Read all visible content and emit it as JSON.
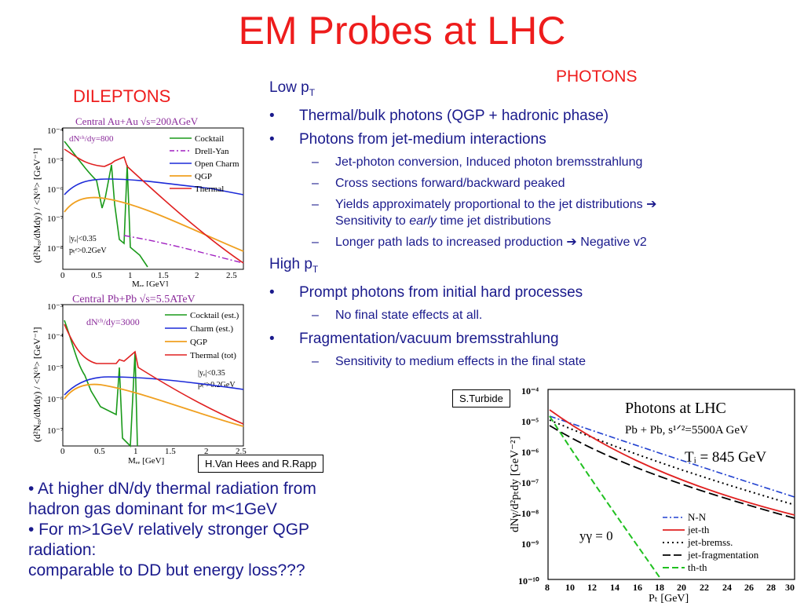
{
  "slide": {
    "title": "EM Probes at LHC",
    "photons_label": "PHOTONS",
    "dileptons_label": "DILEPTONS"
  },
  "photon_list": {
    "low_pt": "Low p",
    "low_pt_sub": "T",
    "b1": "Thermal/bulk photons (QGP + hadronic phase)",
    "b2": "Photons from jet-medium interactions",
    "b2_1": "Jet-photon conversion, Induced photon bremsstrahlung",
    "b2_2": "Cross sections forward/backward peaked",
    "b2_3a": "Yields approximately proportional to the jet distributions ➔",
    "b2_3b": "Sensitivity to ",
    "b2_3c": "early",
    "b2_3d": " time jet distributions",
    "b2_4": "Longer path lads to increased production ➔ Negative v2",
    "high_pt": "High p",
    "high_pt_sub": "T",
    "b3": "Prompt photons from initial hard processes",
    "b3_1": "No final state effects at all.",
    "b4": "Fragmentation/vacuum bremsstrahlung",
    "b4_1": "Sensitivity to medium effects in the final state"
  },
  "credits": {
    "rapp": "H.Van Hees and R.Rapp",
    "turbide": "S.Turbide"
  },
  "bottom_text": {
    "l1": "• At higher dN/dy thermal radiation from",
    "l2": "hadron gas dominant for m<1GeV",
    "l3": "• For m>1GeV relatively stronger QGP",
    "l4": "radiation:",
    "l5": "comparable to DD but energy loss???"
  },
  "chart_top": {
    "title": "Central Au+Au   √s=200AGeV",
    "ylabel": "(d²Nₑₑ/dMdy) / <Nᶜʰ> [GeV⁻¹]",
    "annotation": "dNᶜʰ/dy=800",
    "cuts": [
      "|yₑ|<0.35",
      "pₜᵉ>0.2GeV"
    ],
    "xticks": [
      "0",
      "0.5",
      "1",
      "1.5",
      "2",
      "2.5"
    ],
    "yticks": [
      "10⁻⁴",
      "10⁻⁵",
      "10⁻⁶",
      "10⁻⁷",
      "10⁻⁸"
    ],
    "xlabel": "Mₑₑ [GeV]",
    "legend": [
      "Cocktail",
      "Drell-Yan",
      "Open Charm",
      "QGP",
      "Thermal"
    ],
    "colors": {
      "cocktail": "#1a9a1a",
      "dy": "#a020c0",
      "charm": "#1c2ad8",
      "qgp": "#f0a020",
      "thermal": "#e02020"
    }
  },
  "chart_mid": {
    "title": "Central Pb+Pb √s=5.5ATeV",
    "ylabel": "(d²Nₑₑ/dMdy) / <Nᶜʰ> [GeV⁻¹]",
    "annotation": "dNᶜʰ/dy=3000",
    "cuts": [
      "|yₑ|<0.35",
      "pₜᵉ>0.2GeV"
    ],
    "xticks": [
      "0",
      "0.5",
      "1",
      "1.5",
      "2",
      "2.5"
    ],
    "yticks": [
      "10⁻³",
      "10⁻⁴",
      "10⁻⁵",
      "10⁻⁶",
      "10⁻⁷"
    ],
    "xlabel": "Mₑₑ [GeV]",
    "legend": [
      "Cocktail (est.)",
      "Charm (est.)",
      "QGP",
      "Thermal (tot)"
    ]
  },
  "chart_photons": {
    "title": "Photons at LHC",
    "subtitle": "Pb + Pb, s¹ᐟ²=5500A GeV",
    "ti": "Tᵢ = 845 GeV",
    "rapidity": "yγ = 0",
    "ylabel": "dNγ/d²pₜdy [GeV⁻²]",
    "xlabel": "Pₜ [GeV]",
    "xticks": [
      "8",
      "10",
      "12",
      "14",
      "16",
      "18",
      "20",
      "22",
      "24",
      "26",
      "28",
      "30"
    ],
    "yticks": [
      "10⁻⁴",
      "10⁻⁵",
      "10⁻⁶",
      "10⁻⁷",
      "10⁻⁸",
      "10⁻⁹",
      "10⁻¹⁰"
    ],
    "legend": [
      "N-N",
      "jet-th",
      "jet-bremss.",
      "jet-fragmentation",
      "th-th"
    ],
    "colors": {
      "nn": "#2040d0",
      "jetth": "#e02020",
      "brems": "#000000",
      "frag": "#000000",
      "thth": "#20c020"
    }
  }
}
